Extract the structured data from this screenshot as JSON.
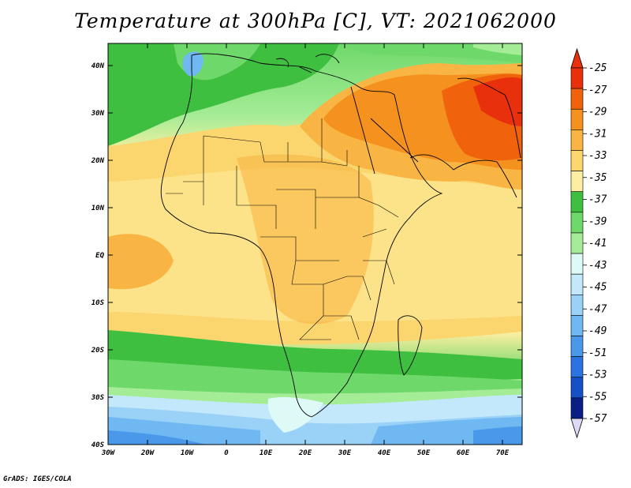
{
  "title": "Temperature at 300hPa [C], VT: 2021062000",
  "credit": "GrADS: IGES/COLA",
  "lon_ticks": [
    "30W",
    "20W",
    "10W",
    "0",
    "10E",
    "20E",
    "30E",
    "40E",
    "50E",
    "60E",
    "70E"
  ],
  "lat_ticks": [
    "40N",
    "30N",
    "20N",
    "10N",
    "EQ",
    "10S",
    "20S",
    "30S",
    "40S"
  ],
  "colorbar": {
    "labels": [
      "-25",
      "-27",
      "-29",
      "-31",
      "-33",
      "-35",
      "-37",
      "-39",
      "-41",
      "-43",
      "-45",
      "-47",
      "-49",
      "-51",
      "-53",
      "-55",
      "-57"
    ],
    "colors": [
      "#e8300c",
      "#f1620c",
      "#f5911e",
      "#f8b543",
      "#fbd56e",
      "#fdefa1",
      "#3fbf3f",
      "#6fd86a",
      "#a4ec96",
      "#ddfaf6",
      "#c4e8fb",
      "#99d1f7",
      "#6fb8f2",
      "#4a98ea",
      "#2a73e0",
      "#1650c7",
      "#0a1f86"
    ],
    "top_arrow": "#e8300c",
    "bottom_arrow": "#dcd9f5"
  }
}
